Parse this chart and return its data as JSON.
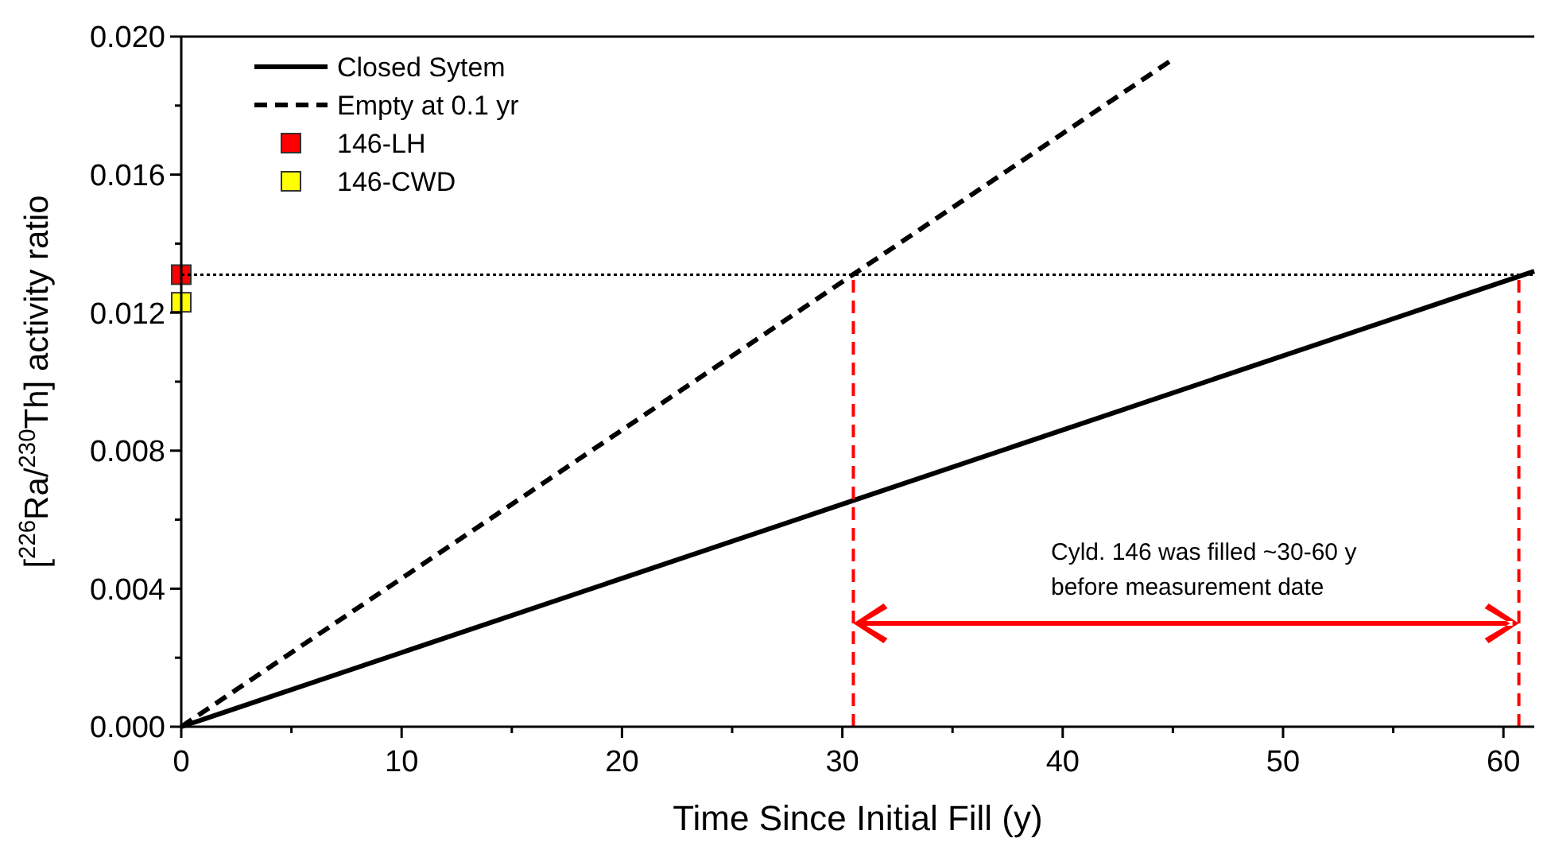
{
  "chart_data": {
    "type": "line",
    "xlabel": "Time Since Initial Fill (y)",
    "ylabel": "[$^{226}$Ra/$^{230}$Th] activity ratio",
    "xlim": [
      0,
      61.4
    ],
    "ylim": [
      0,
      0.02
    ],
    "xticks": [
      0,
      {
        "value": 5,
        "label": null
      },
      10,
      {
        "value": 15,
        "label": null
      },
      20,
      {
        "value": 25,
        "label": null
      },
      30,
      {
        "value": 35,
        "label": null
      },
      40,
      {
        "value": 45,
        "label": null
      },
      50,
      {
        "value": 55,
        "label": null
      },
      60
    ],
    "yticks": [
      {
        "value": 0,
        "label": "0.000"
      },
      {
        "value": 0.002,
        "label": null
      },
      {
        "value": 0.004,
        "label": "0.004"
      },
      {
        "value": 0.006,
        "label": null
      },
      {
        "value": 0.008,
        "label": "0.008"
      },
      {
        "value": 0.01,
        "label": null
      },
      {
        "value": 0.012,
        "label": "0.012"
      },
      {
        "value": 0.014,
        "label": null
      },
      {
        "value": 0.016,
        "label": "0.016"
      },
      {
        "value": 0.018,
        "label": null
      },
      {
        "value": 0.02,
        "label": "0.020"
      }
    ],
    "grid": false,
    "legend": "top left",
    "series": [
      {
        "name": "Closed Sytem",
        "color": "#000000",
        "line_style": "solid",
        "x": [
          0,
          61.4
        ],
        "values": [
          0,
          0.0132
        ]
      },
      {
        "name": "Empty at 0.1 yr",
        "color": "#000000",
        "line_style": "dashed",
        "x": [
          0,
          44.9
        ],
        "values": [
          0,
          0.0193
        ]
      },
      {
        "name": "146-LH",
        "type": "scatter",
        "color": "#ff0000",
        "marker": "square",
        "x": [
          0
        ],
        "values": [
          0.0131
        ]
      },
      {
        "name": "146-CWD",
        "type": "scatter",
        "color": "#ffff00",
        "marker": "square",
        "x": [
          0
        ],
        "values": [
          0.0123
        ]
      },
      {
        "color": "#000000",
        "line_style": "dotted",
        "x": [
          0,
          61.4
        ],
        "values": [
          0.0131,
          0.0131
        ]
      },
      {
        "color": "#ff0000",
        "line_style": "dashed",
        "x": [
          30.5,
          30.5
        ],
        "values": [
          0,
          0.0131
        ]
      },
      {
        "color": "#ff0000",
        "line_style": "dashed",
        "x": [
          60.7,
          60.7
        ],
        "values": [
          0,
          0.0131
        ]
      }
    ],
    "annotations": [
      "Cyld. 146 was filled ~30-60 y\nbefore measurement date"
    ]
  }
}
